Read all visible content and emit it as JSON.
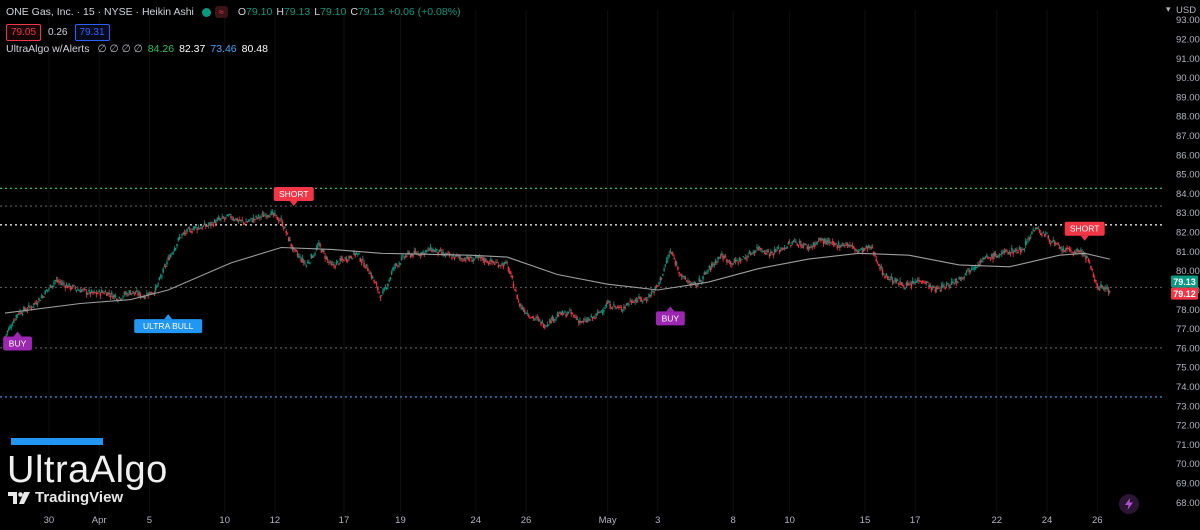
{
  "header": {
    "title": "ONE Gas, Inc. · 15 · NYSE · Heikin Ashi",
    "ohlc": {
      "o_label": "O",
      "o": "79.10",
      "h_label": "H",
      "h": "79.13",
      "l_label": "L",
      "l": "79.10",
      "c_label": "C",
      "c": "79.13",
      "change": "+0.06 (+0.08%)"
    },
    "sell_price": "79.05",
    "spread": "0.26",
    "buy_price": "79.31"
  },
  "indicator": {
    "name": "UltraAlgo w/Alerts",
    "placeholders": "∅ ∅ ∅ ∅",
    "values": [
      {
        "text": "84.26",
        "color": "#22c55e"
      },
      {
        "text": "82.37",
        "color": "#ffffff"
      },
      {
        "text": "73.46",
        "color": "#42a5f5"
      },
      {
        "text": "80.48",
        "color": "#ffffff"
      }
    ]
  },
  "watermark": {
    "title": "UltraAlgo",
    "brand": "TradingView"
  },
  "colors": {
    "up": "#089981",
    "down": "#f23645",
    "buy": "#9c27b0",
    "ultra_bull": "#2196f3",
    "short": "#f23645",
    "ma": "#9e9e9e"
  },
  "chart_data": {
    "type": "candlestick",
    "style": "Heikin Ashi",
    "interval": "15",
    "currency": "USD",
    "ylim": [
      67.5,
      93.5
    ],
    "y_ticks": [
      "93.00",
      "92.00",
      "91.00",
      "90.00",
      "89.00",
      "88.00",
      "87.00",
      "86.00",
      "85.00",
      "84.00",
      "83.00",
      "82.00",
      "81.00",
      "80.00",
      "79.00",
      "78.00",
      "77.00",
      "76.00",
      "75.00",
      "74.00",
      "73.00",
      "72.00",
      "71.00",
      "70.00",
      "69.00",
      "68.00"
    ],
    "x_ticks": [
      "30",
      "Apr",
      "5",
      "10",
      "12",
      "17",
      "19",
      "24",
      "26",
      "May",
      "3",
      "8",
      "10",
      "15",
      "17",
      "22",
      "24",
      "26"
    ],
    "x_range": [
      0,
      92
    ],
    "x_tick_positions": [
      3.5,
      7.5,
      11.5,
      17.5,
      21.5,
      27,
      31.5,
      37.5,
      41.5,
      48,
      52,
      58,
      62.5,
      68.5,
      72.5,
      79,
      83,
      87
    ],
    "close_path": [
      [
        0,
        76.6
      ],
      [
        1,
        77.8
      ],
      [
        2,
        78.1
      ],
      [
        3,
        78.7
      ],
      [
        4,
        79.5
      ],
      [
        5,
        79.2
      ],
      [
        6,
        79.0
      ],
      [
        7,
        78.8
      ],
      [
        8,
        78.9
      ],
      [
        9,
        78.6
      ],
      [
        10,
        78.9
      ],
      [
        11,
        78.7
      ],
      [
        12,
        79.0
      ],
      [
        13,
        80.6
      ],
      [
        14,
        81.8
      ],
      [
        15,
        82.2
      ],
      [
        16,
        82.3
      ],
      [
        17,
        82.6
      ],
      [
        18,
        82.8
      ],
      [
        19,
        82.5
      ],
      [
        20,
        82.7
      ],
      [
        21,
        83.0
      ],
      [
        22,
        82.6
      ],
      [
        23,
        81.0
      ],
      [
        24,
        80.3
      ],
      [
        25,
        81.3
      ],
      [
        26,
        80.2
      ],
      [
        27,
        80.6
      ],
      [
        28,
        80.9
      ],
      [
        29,
        80.0
      ],
      [
        30,
        78.6
      ],
      [
        31,
        80.2
      ],
      [
        32,
        80.8
      ],
      [
        33,
        80.9
      ],
      [
        34,
        81.1
      ],
      [
        35,
        80.8
      ],
      [
        36,
        80.7
      ],
      [
        37,
        80.6
      ],
      [
        38,
        80.6
      ],
      [
        39,
        80.4
      ],
      [
        40,
        80.3
      ],
      [
        41,
        78.2
      ],
      [
        42,
        77.6
      ],
      [
        43,
        77.2
      ],
      [
        44,
        77.7
      ],
      [
        45,
        77.8
      ],
      [
        46,
        77.3
      ],
      [
        47,
        77.6
      ],
      [
        48,
        78.3
      ],
      [
        49,
        78.0
      ],
      [
        50,
        78.5
      ],
      [
        51,
        78.5
      ],
      [
        52,
        79.2
      ],
      [
        53,
        81.0
      ],
      [
        54,
        79.6
      ],
      [
        55,
        79.2
      ],
      [
        56,
        80.0
      ],
      [
        57,
        80.8
      ],
      [
        58,
        80.4
      ],
      [
        59,
        80.7
      ],
      [
        60,
        81.2
      ],
      [
        61,
        80.9
      ],
      [
        62,
        81.2
      ],
      [
        63,
        81.5
      ],
      [
        64,
        81.2
      ],
      [
        65,
        81.6
      ],
      [
        66,
        81.3
      ],
      [
        67,
        81.4
      ],
      [
        68,
        81.0
      ],
      [
        69,
        81.2
      ],
      [
        70,
        79.8
      ],
      [
        71,
        79.4
      ],
      [
        72,
        79.2
      ],
      [
        73,
        79.6
      ],
      [
        74,
        79.0
      ],
      [
        75,
        79.2
      ],
      [
        76,
        79.6
      ],
      [
        77,
        80.2
      ],
      [
        78,
        80.6
      ],
      [
        79,
        80.8
      ],
      [
        80,
        81.0
      ],
      [
        81,
        81.1
      ],
      [
        82,
        82.2
      ],
      [
        83,
        81.8
      ],
      [
        84,
        81.1
      ],
      [
        85,
        81.0
      ],
      [
        86,
        80.9
      ],
      [
        87,
        79.2
      ],
      [
        88,
        79.0
      ]
    ],
    "moving_average_path": [
      [
        0,
        77.8
      ],
      [
        6,
        78.3
      ],
      [
        10,
        78.5
      ],
      [
        13,
        79.0
      ],
      [
        18,
        80.4
      ],
      [
        22,
        81.2
      ],
      [
        26,
        81.1
      ],
      [
        30,
        80.9
      ],
      [
        37,
        80.8
      ],
      [
        40,
        80.7
      ],
      [
        44,
        79.8
      ],
      [
        48,
        79.3
      ],
      [
        52,
        79.0
      ],
      [
        56,
        79.4
      ],
      [
        60,
        80.1
      ],
      [
        64,
        80.6
      ],
      [
        68,
        80.9
      ],
      [
        72,
        80.8
      ],
      [
        76,
        80.3
      ],
      [
        80,
        80.2
      ],
      [
        84,
        80.8
      ],
      [
        86,
        80.9
      ],
      [
        88,
        80.6
      ]
    ],
    "horizontal_levels": [
      {
        "value": 84.26,
        "color": "#22c55e",
        "style": "dotted"
      },
      {
        "value": 83.35,
        "color": "#555555",
        "style": "dotted"
      },
      {
        "value": 82.37,
        "color": "#ffffff",
        "style": "dotted"
      },
      {
        "value": 79.13,
        "color": "#555555",
        "style": "dotted"
      },
      {
        "value": 76.0,
        "color": "#555555",
        "style": "dotted"
      },
      {
        "value": 73.46,
        "color": "#42a5f5",
        "style": "dotted"
      }
    ],
    "signals": [
      {
        "label": "BUY",
        "x": 1,
        "price": 76.9,
        "position": "below",
        "color": "#9c27b0"
      },
      {
        "label": "ULTRA BULL",
        "x": 13,
        "price": 77.8,
        "position": "below",
        "color": "#2196f3"
      },
      {
        "label": "SHORT",
        "x": 23,
        "price": 83.3,
        "position": "above",
        "color": "#f23645"
      },
      {
        "label": "BUY",
        "x": 53,
        "price": 78.2,
        "position": "below",
        "color": "#9c27b0"
      },
      {
        "label": "SHORT",
        "x": 86,
        "price": 81.5,
        "position": "above",
        "color": "#f23645"
      }
    ],
    "last_prices": [
      {
        "label": "79.13",
        "value": 79.13,
        "color": "#089981"
      },
      {
        "label": "79.12",
        "value": 79.12,
        "color": "#f23645"
      }
    ]
  }
}
